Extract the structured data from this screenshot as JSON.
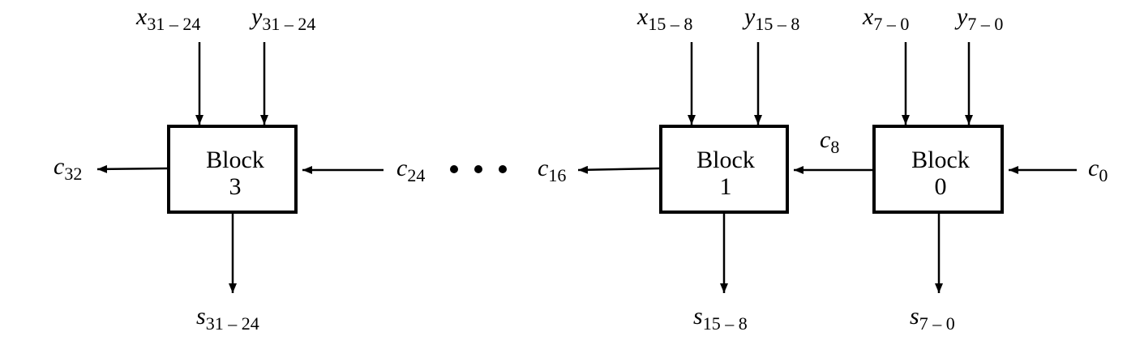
{
  "blocks": [
    {
      "name": "Block",
      "index": "3"
    },
    {
      "name": "Block",
      "index": "1"
    },
    {
      "name": "Block",
      "index": "0"
    }
  ],
  "inputs": {
    "x31_24": {
      "var": "x",
      "sub": "31 – 24"
    },
    "y31_24": {
      "var": "y",
      "sub": "31 – 24"
    },
    "x15_8": {
      "var": "x",
      "sub": "15 – 8"
    },
    "y15_8": {
      "var": "y",
      "sub": "15 – 8"
    },
    "x7_0": {
      "var": "x",
      "sub": "7 – 0"
    },
    "y7_0": {
      "var": "y",
      "sub": "7 – 0"
    }
  },
  "outputs": {
    "s31_24": {
      "var": "s",
      "sub": "31 – 24"
    },
    "s15_8": {
      "var": "s",
      "sub": "15 – 8"
    },
    "s7_0": {
      "var": "s",
      "sub": "7 – 0"
    }
  },
  "carries": {
    "c32": {
      "var": "c",
      "sub": "32"
    },
    "c24": {
      "var": "c",
      "sub": "24"
    },
    "c16": {
      "var": "c",
      "sub": "16"
    },
    "c8": {
      "var": "c",
      "sub": "8"
    },
    "c0": {
      "var": "c",
      "sub": "0"
    }
  }
}
